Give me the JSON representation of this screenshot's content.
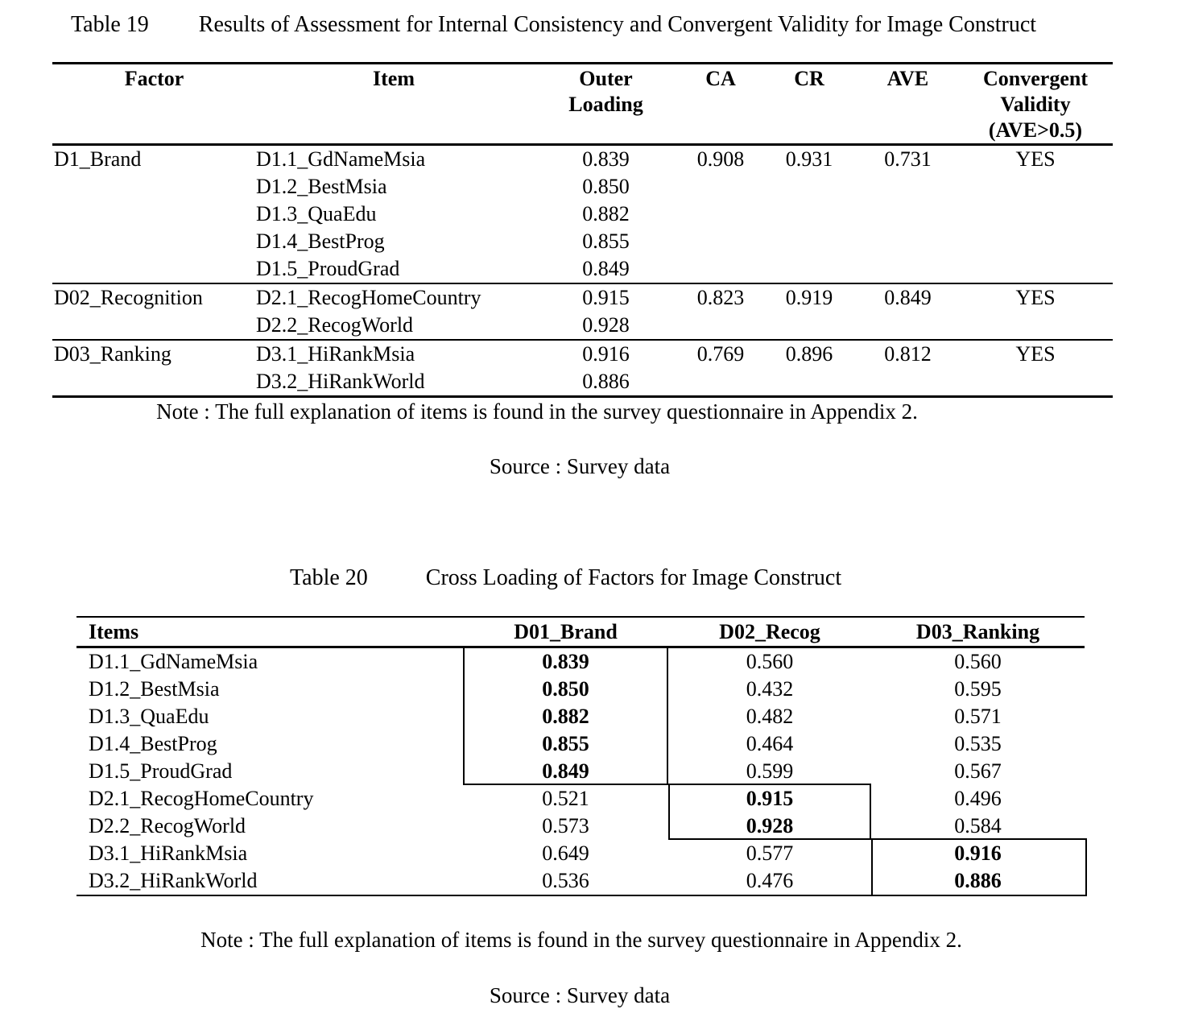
{
  "page": {
    "background_color": "#ffffff",
    "text_color": "#000000"
  },
  "table19": {
    "caption": {
      "label": "Table 19",
      "title": "Results of Assessment for Internal Consistency and Convergent Validity for Image Construct"
    },
    "header": {
      "factor": "Factor",
      "item": "Item",
      "outer_loading": "Outer\nLoading",
      "ca": "CA",
      "cr": "CR",
      "ave": "AVE",
      "convergent_validity": "Convergent\nValidity\n(AVE>0.5)"
    },
    "groups": [
      {
        "factor": "D1_Brand",
        "items": [
          {
            "item": "D1.1_GdNameMsia",
            "outer_loading": "0.839"
          },
          {
            "item": "D1.2_BestMsia",
            "outer_loading": "0.850"
          },
          {
            "item": "D1.3_QuaEdu",
            "outer_loading": "0.882"
          },
          {
            "item": "D1.4_BestProg",
            "outer_loading": "0.855"
          },
          {
            "item": "D1.5_ProudGrad",
            "outer_loading": "0.849"
          }
        ],
        "ca": "0.908",
        "cr": "0.931",
        "ave": "0.731",
        "convergent_validity": "YES"
      },
      {
        "factor": "D02_Recognition",
        "items": [
          {
            "item": "D2.1_RecogHomeCountry",
            "outer_loading": "0.915"
          },
          {
            "item": "D2.2_RecogWorld",
            "outer_loading": "0.928"
          }
        ],
        "ca": "0.823",
        "cr": "0.919",
        "ave": "0.849",
        "convergent_validity": "YES"
      },
      {
        "factor": "D03_Ranking",
        "items": [
          {
            "item": "D3.1_HiRankMsia",
            "outer_loading": "0.916"
          },
          {
            "item": "D3.2_HiRankWorld",
            "outer_loading": "0.886"
          }
        ],
        "ca": "0.769",
        "cr": "0.896",
        "ave": "0.812",
        "convergent_validity": "YES"
      }
    ],
    "note": "Note : The full explanation of items is found in the survey questionnaire in Appendix 2.",
    "source": "Source : Survey data"
  },
  "table20": {
    "caption": {
      "label": "Table 20",
      "title": "Cross Loading of Factors for Image Construct"
    },
    "header": {
      "items": "Items",
      "d01_brand": "D01_Brand",
      "d02_recog": "D02_Recog",
      "d03_ranking": "D03_Ranking"
    },
    "rows": [
      {
        "item": "D1.1_GdNameMsia",
        "values": [
          "0.839",
          "0.560",
          "0.560"
        ],
        "bold_value_index": 0
      },
      {
        "item": "D1.2_BestMsia",
        "values": [
          "0.850",
          "0.432",
          "0.595"
        ],
        "bold_value_index": 0
      },
      {
        "item": "D1.3_QuaEdu",
        "values": [
          "0.882",
          "0.482",
          "0.571"
        ],
        "bold_value_index": 0
      },
      {
        "item": "D1.4_BestProg",
        "values": [
          "0.855",
          "0.464",
          "0.535"
        ],
        "bold_value_index": 0
      },
      {
        "item": "D1.5_ProudGrad",
        "values": [
          "0.849",
          "0.599",
          "0.567"
        ],
        "bold_value_index": 0
      },
      {
        "item": "D2.1_RecogHomeCountry",
        "values": [
          "0.521",
          "0.915",
          "0.496"
        ],
        "bold_value_index": 1
      },
      {
        "item": "D2.2_RecogWorld",
        "values": [
          "0.573",
          "0.928",
          "0.584"
        ],
        "bold_value_index": 1
      },
      {
        "item": "D3.1_HiRankMsia",
        "values": [
          "0.649",
          "0.577",
          "0.916"
        ],
        "bold_value_index": 2
      },
      {
        "item": "D3.2_HiRankWorld",
        "values": [
          "0.536",
          "0.476",
          "0.886"
        ],
        "bold_value_index": 2
      }
    ],
    "note": "Note : The full explanation of items is found in the survey questionnaire in Appendix 2.",
    "source": "Source : Survey data"
  }
}
